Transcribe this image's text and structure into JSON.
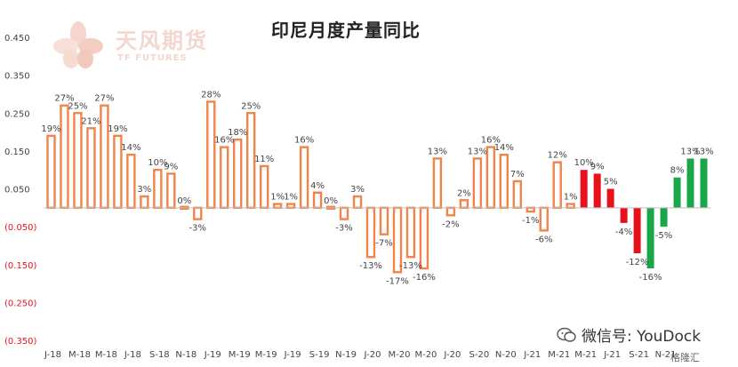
{
  "title": "印尼月度产量同比",
  "logo": {
    "name": "天风期货",
    "sub": "TF FUTURES"
  },
  "watermark": {
    "text": "微信号: YouDock",
    "badge": "格隆汇"
  },
  "colors": {
    "outline": "#f0844a",
    "up": "#e8101a",
    "down": "#19a74a",
    "neg_axis_label": "#e8101a",
    "axis_label": "#444444"
  },
  "chart_data": {
    "type": "bar",
    "title": "印尼月度产量同比",
    "ylim": [
      -0.35,
      0.45
    ],
    "yticks": [
      0.45,
      0.35,
      0.25,
      0.15,
      0.05,
      -0.05,
      -0.15,
      -0.25,
      -0.35
    ],
    "ytick_labels": [
      "0.450",
      "0.350",
      "0.250",
      "0.150",
      "0.050",
      "(0.050)",
      "(0.150)",
      "(0.250)",
      "(0.350)"
    ],
    "x_tick_labels": [
      "J-18",
      "M-18",
      "M-18",
      "J-18",
      "S-18",
      "N-18",
      "J-19",
      "M-19",
      "M-19",
      "J-19",
      "S-19",
      "N-19",
      "J-20",
      "M-20",
      "M-20",
      "J-20",
      "S-20",
      "N-20",
      "J-21",
      "M-21",
      "M-21",
      "J-21",
      "S-21",
      "N-21"
    ],
    "grid": false,
    "legend": "none",
    "values": [
      0.19,
      0.27,
      0.25,
      0.21,
      0.27,
      0.19,
      0.14,
      0.03,
      0.1,
      0.09,
      0.0,
      -0.03,
      0.28,
      0.16,
      0.18,
      0.25,
      0.11,
      0.01,
      0.01,
      0.16,
      0.04,
      0.0,
      -0.03,
      0.03,
      -0.13,
      -0.07,
      -0.17,
      -0.13,
      -0.16,
      0.13,
      -0.02,
      0.02,
      0.13,
      0.16,
      0.14,
      0.07,
      -0.01,
      -0.06,
      0.12,
      0.01,
      0.1,
      0.09,
      0.05,
      -0.04,
      -0.12,
      -0.16,
      -0.05,
      0.08,
      0.13,
      0.13
    ],
    "data_labels": [
      "19%",
      "27%",
      "25%",
      "21%",
      "27%",
      "19%",
      "14%",
      "3%",
      "10%",
      "9%",
      "0%",
      "-3%",
      "28%",
      "16%",
      "18%",
      "25%",
      "11%",
      "1%",
      "1%",
      "16%",
      "4%",
      "0%",
      "-3%",
      "3%",
      "-13%",
      "-7%",
      "-17%",
      "-13%",
      "-16%",
      "13%",
      "-2%",
      "2%",
      "13%",
      "16%",
      "14%",
      "7%",
      "-1%",
      "-6%",
      "12%",
      "1%",
      "10%",
      "9%",
      "5%",
      "-4%",
      "-12%",
      "-16%",
      "-5%",
      "8%",
      "13%",
      "13%"
    ],
    "bar_styles": [
      "outline",
      "outline",
      "outline",
      "outline",
      "outline",
      "outline",
      "outline",
      "outline",
      "outline",
      "outline",
      "outline",
      "outline",
      "outline",
      "outline",
      "outline",
      "outline",
      "outline",
      "outline",
      "outline",
      "outline",
      "outline",
      "outline",
      "outline",
      "outline",
      "outline",
      "outline",
      "outline",
      "outline",
      "outline",
      "outline",
      "outline",
      "outline",
      "outline",
      "outline",
      "outline",
      "outline",
      "outline",
      "outline",
      "outline",
      "outline",
      "red",
      "red",
      "red",
      "red",
      "red",
      "green",
      "green",
      "green",
      "green",
      "green"
    ]
  }
}
